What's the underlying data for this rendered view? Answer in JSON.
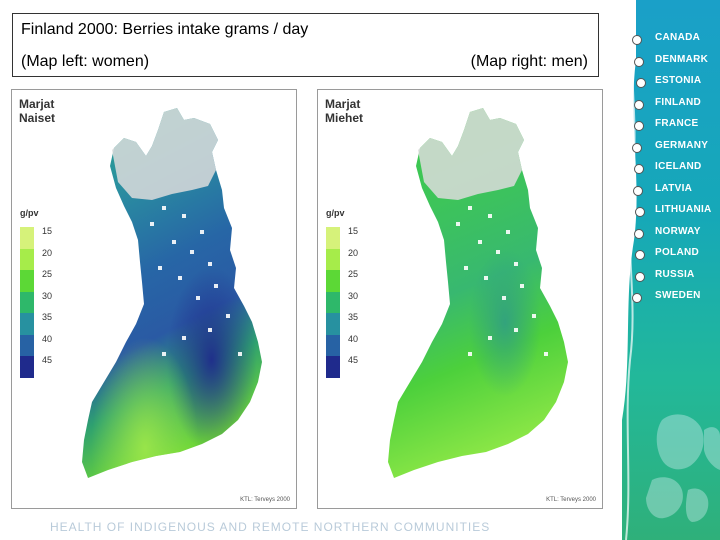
{
  "header": {
    "title": "Finland 2000: Berries intake grams / day",
    "left_caption": "(Map left: women)",
    "right_caption": "(Map right: men)"
  },
  "maps": [
    {
      "title_line1": "Marjat",
      "title_line2": "Naiset",
      "legend_title": "g/pv",
      "legend": [
        {
          "label": "15",
          "color": "#d6f27a"
        },
        {
          "label": "20",
          "color": "#a6ec4a"
        },
        {
          "label": "25",
          "color": "#5cd836"
        },
        {
          "label": "30",
          "color": "#2eb86a"
        },
        {
          "label": "35",
          "color": "#2791a0"
        },
        {
          "label": "40",
          "color": "#2762a4"
        },
        {
          "label": "45",
          "color": "#1f2a8c"
        }
      ],
      "credit": "KTL: Terveys 2000"
    },
    {
      "title_line1": "Marjat",
      "title_line2": "Miehet",
      "legend_title": "g/pv",
      "legend": [
        {
          "label": "15",
          "color": "#d6f27a"
        },
        {
          "label": "20",
          "color": "#a6ec4a"
        },
        {
          "label": "25",
          "color": "#5cd836"
        },
        {
          "label": "30",
          "color": "#2eb86a"
        },
        {
          "label": "35",
          "color": "#2791a0"
        },
        {
          "label": "40",
          "color": "#2762a4"
        },
        {
          "label": "45",
          "color": "#1f2a8c"
        }
      ],
      "credit": "KTL: Terveys 2000"
    }
  ],
  "sidebar": {
    "countries": [
      "CANADA",
      "DENMARK",
      "ESTONIA",
      "FINLAND",
      "FRANCE",
      "GERMANY",
      "ICELAND",
      "LATVIA",
      "LITHUANIA",
      "NORWAY",
      "POLAND",
      "RUSSIA",
      "SWEDEN"
    ]
  },
  "footer": {
    "text": "HEALTH OF INDIGENOUS AND REMOTE NORTHERN COMMUNITIES"
  }
}
